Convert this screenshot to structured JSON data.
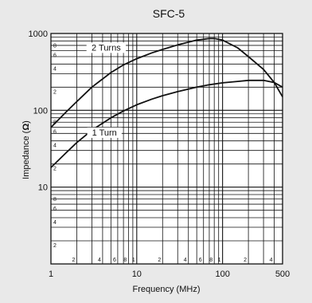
{
  "chart_data": {
    "type": "line",
    "title": "SFC-5",
    "xlabel": "Frequency (MHz)",
    "ylabel_prefix": "Impedance (",
    "ylabel_unit": "Ω",
    "ylabel_suffix": ")",
    "xscale": "log",
    "yscale": "log",
    "xlim": [
      1,
      500
    ],
    "ylim": [
      1,
      1000
    ],
    "grid": true,
    "x_major_ticks": [
      {
        "value": 1,
        "label": "1"
      },
      {
        "value": 10,
        "label": "10"
      },
      {
        "value": 100,
        "label": "100"
      },
      {
        "value": 500,
        "label": "500"
      }
    ],
    "x_minor_ticks": [
      {
        "value": 2,
        "label": "2"
      },
      {
        "value": 4,
        "label": "4"
      },
      {
        "value": 6,
        "label": "6"
      },
      {
        "value": 8,
        "label": "8"
      },
      {
        "value": 10,
        "label": "1"
      },
      {
        "value": 20,
        "label": "2"
      },
      {
        "value": 40,
        "label": "4"
      },
      {
        "value": 60,
        "label": "6"
      },
      {
        "value": 80,
        "label": "8"
      },
      {
        "value": 100,
        "label": "1"
      },
      {
        "value": 200,
        "label": "2"
      },
      {
        "value": 400,
        "label": "4"
      }
    ],
    "y_major_ticks": [
      {
        "value": 1000,
        "label": "1000"
      },
      {
        "value": 100,
        "label": "100"
      },
      {
        "value": 10,
        "label": "10"
      }
    ],
    "y_minor_ticks": [
      {
        "value": 800,
        "label": "8"
      },
      {
        "value": 600,
        "label": "6"
      },
      {
        "value": 400,
        "label": "4"
      },
      {
        "value": 200,
        "label": "2"
      },
      {
        "value": 80,
        "label": "8"
      },
      {
        "value": 60,
        "label": "6"
      },
      {
        "value": 40,
        "label": "4"
      },
      {
        "value": 20,
        "label": "2"
      },
      {
        "value": 8,
        "label": "8"
      },
      {
        "value": 6,
        "label": "6"
      },
      {
        "value": 4,
        "label": "4"
      },
      {
        "value": 2,
        "label": "2"
      }
    ],
    "series": [
      {
        "name": "2 Turns",
        "x": [
          1,
          1.5,
          2,
          3,
          5,
          7,
          10,
          15,
          20,
          30,
          50,
          70,
          80,
          100,
          150,
          200,
          300,
          400,
          500
        ],
        "y": [
          60,
          95,
          130,
          200,
          310,
          390,
          470,
          560,
          620,
          710,
          820,
          860,
          860,
          820,
          650,
          500,
          340,
          230,
          150
        ]
      },
      {
        "name": "1 Turn",
        "x": [
          1,
          1.5,
          2,
          3,
          5,
          7,
          10,
          15,
          20,
          30,
          50,
          70,
          100,
          150,
          200,
          300,
          400,
          500
        ],
        "y": [
          18,
          28,
          38,
          55,
          80,
          98,
          118,
          140,
          155,
          175,
          200,
          215,
          228,
          238,
          245,
          245,
          230,
          200
        ]
      }
    ]
  }
}
